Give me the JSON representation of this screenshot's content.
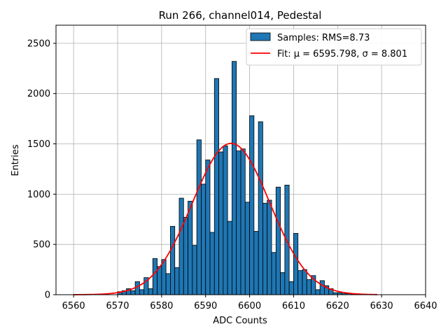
{
  "chart_data": {
    "type": "bar",
    "title": "Run 266, channel014, Pedestal",
    "xlabel": "ADC Counts",
    "ylabel": "Entries",
    "xlim": [
      6556,
      6640
    ],
    "ylim": [
      0,
      2680
    ],
    "grid": true,
    "legend_placement": "top-right",
    "bin_width": 1,
    "bins_start": 6570,
    "counts": [
      30,
      40,
      60,
      40,
      130,
      50,
      170,
      60,
      360,
      280,
      350,
      210,
      680,
      270,
      960,
      770,
      930,
      490,
      1540,
      1100,
      1340,
      620,
      2150,
      1420,
      1480,
      730,
      2320,
      1430,
      1450,
      920,
      1780,
      630,
      1720,
      910,
      940,
      420,
      1070,
      220,
      1090,
      130,
      610,
      240,
      250,
      150,
      190,
      50,
      140,
      90,
      60,
      20,
      20,
      10,
      10,
      5,
      5,
      5,
      5
    ],
    "fit_curve": {
      "mu": 6595.798,
      "sigma": 8.801,
      "amplitude": 1505,
      "x_range": [
        6560,
        6629
      ]
    },
    "series": [
      {
        "name": "Samples: RMS=8.73",
        "color": "#1f77b4"
      },
      {
        "name": "Fit: μ = 6595.798, σ = 8.801",
        "color": "#ff0000"
      }
    ],
    "xticks": [
      6560,
      6570,
      6580,
      6590,
      6600,
      6610,
      6620,
      6630,
      6640
    ],
    "yticks": [
      0,
      500,
      1000,
      1500,
      2000,
      2500
    ]
  },
  "legend": {
    "samples_label": "Samples: RMS=8.73",
    "fit_label": "Fit: μ = 6595.798, σ = 8.801"
  }
}
